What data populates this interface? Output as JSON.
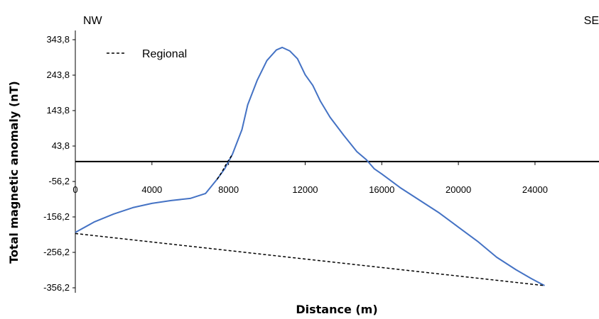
{
  "chart_data": {
    "type": "line",
    "title": "",
    "corner_left": "NW",
    "corner_right": "SE",
    "xlabel": "Distance (m)",
    "ylabel": "Total magnetic anomaly (nT)",
    "xlim": [
      0,
      27000
    ],
    "ylim": [
      -356.2,
      343.8
    ],
    "x_ticks": [
      0,
      4000,
      8000,
      12000,
      16000,
      20000,
      24000
    ],
    "x_tick_labels": [
      "0",
      "4000",
      "8000",
      "12000",
      "16000",
      "20000",
      "24000"
    ],
    "y_ticks": [
      343.8,
      243.8,
      143.8,
      43.8,
      -56.2,
      -156.2,
      -256.2,
      -356.2
    ],
    "y_tick_labels": [
      "343,8",
      "243,8",
      "143,8",
      "43,8",
      "-56,2",
      "-156,2",
      "-256,2",
      "-356,2"
    ],
    "zero_line": 0,
    "grid": false,
    "legend_position": "top-left",
    "series": [
      {
        "name": "",
        "color": "#4472C4",
        "style": "solid",
        "x": [
          0,
          1000,
          2000,
          3000,
          4000,
          5000,
          6000,
          6800,
          7400,
          7800,
          8200,
          8700,
          9000,
          9500,
          10000,
          10500,
          10800,
          11200,
          11600,
          12000,
          12400,
          12800,
          13300,
          14000,
          14700,
          15200,
          15600,
          16000,
          17000,
          18000,
          19000,
          20000,
          21000,
          22000,
          23000,
          23800,
          24500
        ],
        "y": [
          -200,
          -170,
          -148,
          -130,
          -118,
          -110,
          -104,
          -90,
          -50,
          -20,
          20,
          90,
          160,
          230,
          285,
          315,
          322,
          312,
          290,
          245,
          215,
          170,
          125,
          75,
          28,
          5,
          -20,
          -35,
          -75,
          -110,
          -145,
          -185,
          -225,
          -270,
          -305,
          -330,
          -350
        ]
      },
      {
        "name": "Regional",
        "color": "#000000",
        "style": "dashed",
        "x": [
          0,
          24500
        ],
        "y": [
          -203,
          -350
        ]
      },
      {
        "name": "",
        "color": "#000000",
        "style": "dashed",
        "x": [
          7400,
          7650,
          7900,
          8200
        ],
        "y": [
          -50,
          -30,
          -5,
          20
        ]
      }
    ],
    "legend": [
      {
        "label": "Regional",
        "style": "dashed",
        "color": "#000000"
      }
    ]
  }
}
